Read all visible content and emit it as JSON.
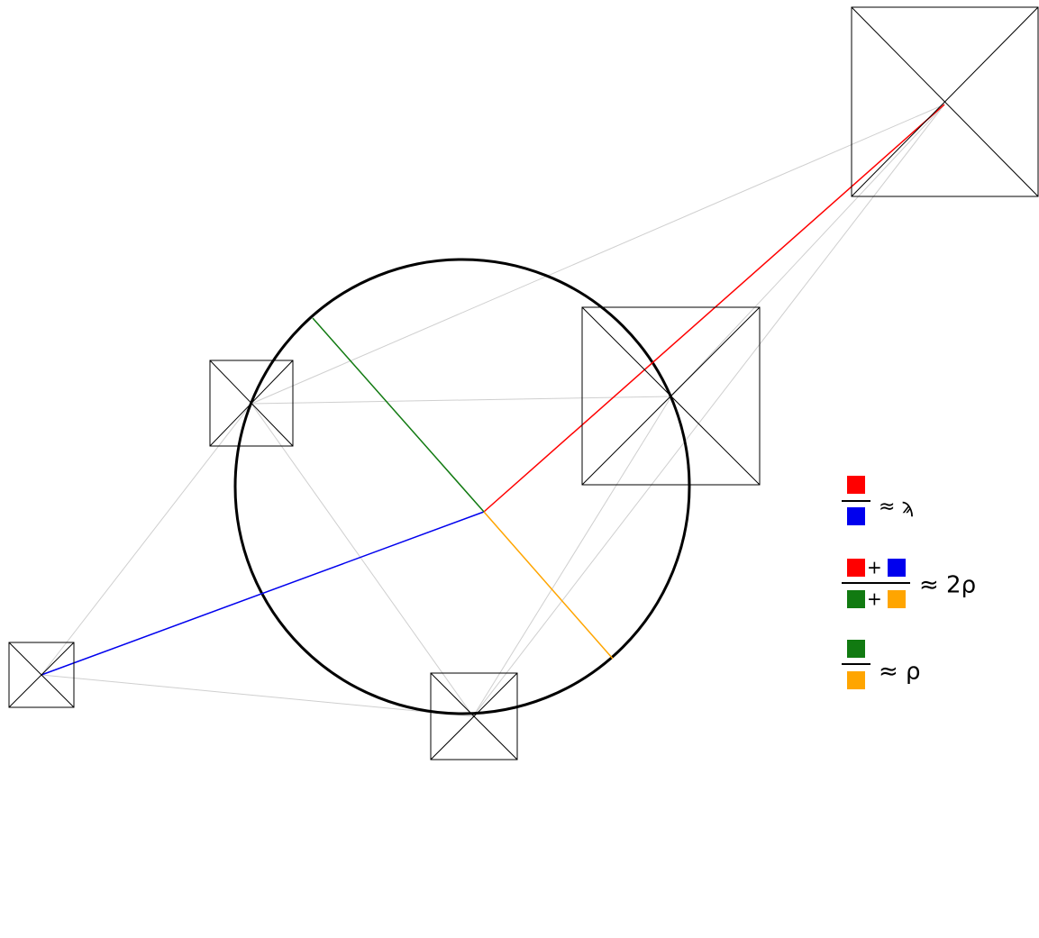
{
  "formulas": [
    {
      "relation": "≈ ϡ"
    },
    {
      "plus_numerator": "+",
      "plus_denominator": "+",
      "relation": "≈ 2ρ"
    },
    {
      "relation": "≈ ρ"
    }
  ]
}
